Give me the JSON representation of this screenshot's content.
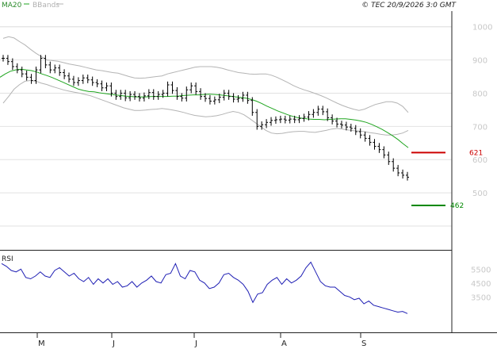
{
  "header": {
    "ma_label": "MA20",
    "bb_label": "BBands",
    "credit": "© TEC 20/9/2026 3:0 GMT"
  },
  "colors": {
    "ma": "#1fa51f",
    "bands": "#b4b4b4",
    "price": "#000000",
    "rsi": "#1f1fb4",
    "resistance": "#cc0000",
    "support": "#008800",
    "grid": "#e2e2e2"
  },
  "rsi_panel": {
    "title": "RSI",
    "ticks": [
      "5500",
      "4500",
      "3500"
    ]
  },
  "chart_data": [
    {
      "type": "line",
      "title": "",
      "x_labels": [
        "M",
        "J",
        "J",
        "A",
        "S"
      ],
      "y_ticks": [
        "1000",
        "900",
        "800",
        "700",
        "600",
        "500"
      ],
      "ylim": [
        400,
        1000
      ],
      "grid": true,
      "price": [
        905,
        895,
        880,
        870,
        858,
        848,
        838,
        870,
        905,
        885,
        870,
        876,
        862,
        852,
        842,
        832,
        838,
        846,
        840,
        832,
        828,
        816,
        822,
        800,
        790,
        800,
        786,
        796,
        790,
        785,
        792,
        802,
        790,
        796,
        800,
        825,
        808,
        790,
        785,
        810,
        822,
        805,
        790,
        784,
        776,
        780,
        788,
        800,
        790,
        782,
        784,
        794,
        778,
        742,
        700,
        705,
        712,
        718,
        720,
        722,
        719,
        722,
        720,
        724,
        728,
        736,
        742,
        752,
        744,
        726,
        716,
        707,
        704,
        698,
        694,
        684,
        674,
        664,
        652,
        640,
        630,
        614,
        594,
        574,
        560,
        553,
        547
      ],
      "ma20": [
        848,
        858,
        866,
        870,
        872,
        870,
        868,
        864,
        858,
        853,
        847,
        840,
        833,
        826,
        819,
        812,
        808,
        805,
        804,
        801,
        799,
        797,
        795,
        793,
        791,
        790,
        789,
        789,
        789,
        790,
        790,
        790,
        790,
        791,
        791,
        793,
        794,
        795,
        795,
        796,
        797,
        796,
        795,
        793,
        791,
        789,
        787,
        785,
        781,
        776,
        769,
        761,
        754,
        747,
        741,
        735,
        730,
        726,
        724,
        722,
        721,
        721,
        720,
        721,
        722,
        723,
        723,
        721,
        719,
        716,
        712,
        706,
        699,
        691,
        682,
        672,
        661,
        648,
        636
      ],
      "bb_upper": [
        965,
        970,
        966,
        955,
        945,
        932,
        920,
        910,
        900,
        898,
        896,
        892,
        888,
        885,
        882,
        878,
        874,
        870,
        868,
        865,
        862,
        860,
        855,
        850,
        846,
        845,
        846,
        848,
        850,
        852,
        858,
        862,
        866,
        870,
        874,
        878,
        880,
        880,
        880,
        878,
        875,
        870,
        866,
        862,
        860,
        858,
        857,
        858,
        858,
        854,
        848,
        840,
        832,
        823,
        816,
        810,
        805,
        799,
        793,
        786,
        778,
        770,
        763,
        757,
        752,
        748,
        752,
        759,
        766,
        770,
        774,
        774,
        770,
        760,
        742
      ],
      "bb_lower": [
        770,
        790,
        812,
        826,
        836,
        838,
        836,
        830,
        826,
        820,
        815,
        810,
        806,
        803,
        800,
        796,
        792,
        786,
        780,
        774,
        768,
        762,
        756,
        752,
        748,
        748,
        749,
        751,
        752,
        754,
        752,
        749,
        746,
        742,
        737,
        733,
        731,
        729,
        730,
        732,
        736,
        741,
        745,
        742,
        735,
        724,
        712,
        700,
        688,
        680,
        678,
        679,
        682,
        684,
        685,
        685,
        683,
        682,
        685,
        688,
        692,
        694,
        692,
        689,
        687,
        686,
        684,
        681,
        679,
        676,
        674,
        674,
        676,
        680,
        688
      ],
      "levels": [
        {
          "value": 621,
          "label": "621",
          "role": "resistance"
        },
        {
          "value": 462,
          "label": "462",
          "role": "support"
        }
      ]
    },
    {
      "type": "line",
      "title": "RSI",
      "y_ticks": [
        "5500",
        "4500",
        "3500"
      ],
      "values": [
        5900,
        5700,
        5400,
        5300,
        5500,
        4900,
        4800,
        5000,
        5300,
        5000,
        4900,
        5400,
        5600,
        5300,
        5000,
        5200,
        4800,
        4600,
        4900,
        4400,
        4800,
        4500,
        4800,
        4400,
        4600,
        4200,
        4300,
        4600,
        4200,
        4500,
        4700,
        5000,
        4600,
        4500,
        5100,
        5200,
        5900,
        5000,
        4800,
        5400,
        5300,
        4700,
        4500,
        4100,
        4200,
        4500,
        5100,
        5200,
        4900,
        4700,
        4400,
        3900,
        3100,
        3700,
        3800,
        4400,
        4700,
        4900,
        4400,
        4800,
        4500,
        4700,
        5000,
        5600,
        6000,
        5300,
        4600,
        4300,
        4200,
        4200,
        3900,
        3600,
        3500,
        3300,
        3400,
        3000,
        3200,
        2900,
        2800,
        2700,
        2600,
        2500,
        2400,
        2450,
        2300
      ]
    }
  ]
}
